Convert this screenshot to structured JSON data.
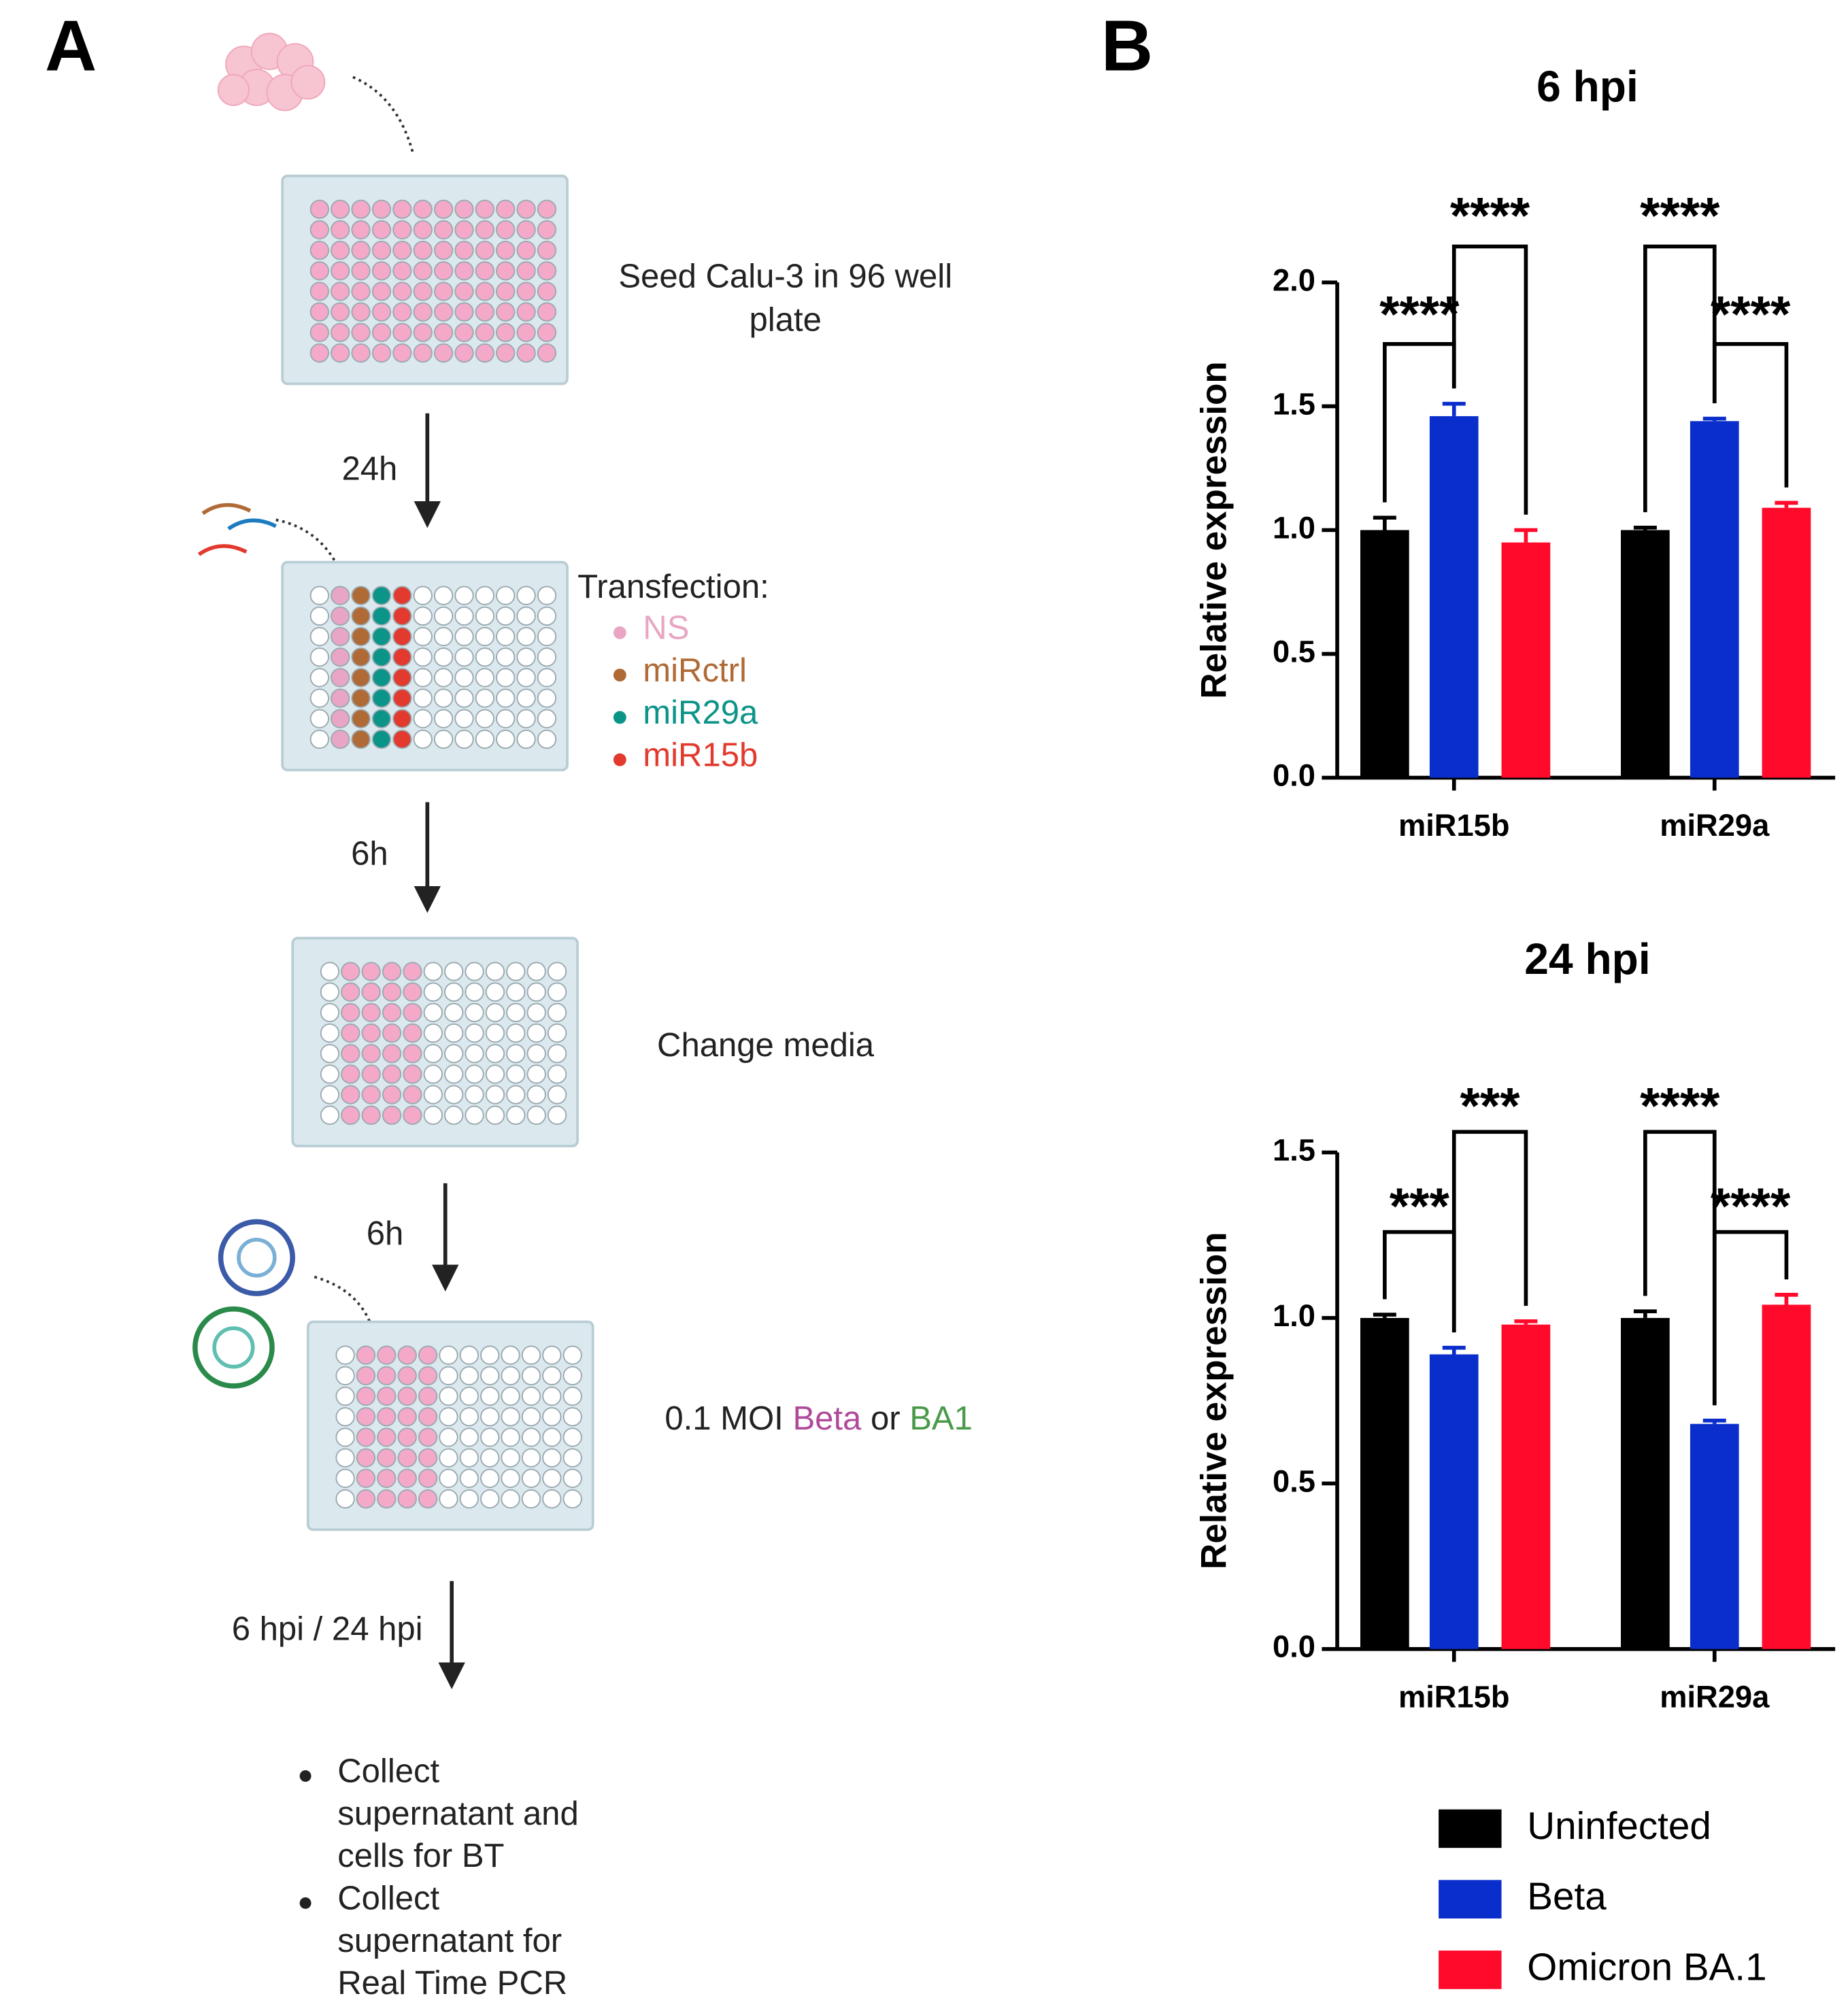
{
  "panel_labels": [
    "A",
    "B"
  ],
  "diagram": {
    "seed": [
      "Seed Calu-3 in 96 well",
      "plate"
    ],
    "step1_time": "24h",
    "transfection": {
      "title": "Transfection:",
      "items": [
        {
          "label": "NS",
          "color": "#e8a6c4"
        },
        {
          "label": "miRctrl",
          "color": "#b06a35"
        },
        {
          "label": "miR29a",
          "color": "#0b9488"
        },
        {
          "label": "miR15b",
          "color": "#e23a2e"
        }
      ]
    },
    "step2_time": "6h",
    "change": "Change media",
    "step3_time": "6h",
    "infection": [
      "0.1 MOI ",
      "Beta",
      " or ",
      "BA1"
    ],
    "step4_time": "6 hpi / 24 hpi",
    "bullets": [
      [
        "Collect",
        "supernatant and",
        "cells for BT"
      ],
      [
        "Collect",
        "supernatant for",
        "Real Time PCR"
      ]
    ]
  },
  "chart_data": [
    {
      "type": "bar",
      "title": "6 hpi",
      "y_label": "Relative expression",
      "categories": [
        "miR15b",
        "miR29a"
      ],
      "series": [
        {
          "name": "Uninfected",
          "color": "#000000",
          "values": [
            1.0,
            1.0
          ],
          "errors": [
            0.05,
            0.01
          ]
        },
        {
          "name": "Beta",
          "color": "#0a2ecc",
          "values": [
            1.46,
            1.44
          ],
          "errors": [
            0.05,
            0.01
          ]
        },
        {
          "name": "Omicron BA.1",
          "color": "#ff0a2a",
          "values": [
            0.95,
            1.09
          ],
          "errors": [
            0.05,
            0.02
          ]
        }
      ],
      "ylim": [
        0,
        2.0
      ],
      "yticks": [
        {
          "value": 0,
          "label": "0.0"
        },
        {
          "value": 0.5,
          "label": "0.5"
        },
        {
          "value": 1,
          "label": "1.0"
        },
        {
          "value": 1.5,
          "label": "1.5"
        },
        {
          "value": 2,
          "label": "2.0"
        }
      ],
      "annotations": [
        "****",
        "****",
        "****",
        "****"
      ]
    },
    {
      "type": "bar",
      "title": "24 hpi",
      "y_label": "Relative expression",
      "categories": [
        "miR15b",
        "miR29a"
      ],
      "series": [
        {
          "name": "Uninfected",
          "color": "#000000",
          "values": [
            1.0,
            1.0
          ],
          "errors": [
            0.01,
            0.02
          ]
        },
        {
          "name": "Beta",
          "color": "#0a2ecc",
          "values": [
            0.89,
            0.68
          ],
          "errors": [
            0.02,
            0.01
          ]
        },
        {
          "name": "Omicron BA.1",
          "color": "#ff0a2a",
          "values": [
            0.98,
            1.04
          ],
          "errors": [
            0.01,
            0.03
          ]
        }
      ],
      "ylim": [
        0,
        1.5
      ],
      "yticks": [
        {
          "value": 0,
          "label": "0.0"
        },
        {
          "value": 0.5,
          "label": "0.5"
        },
        {
          "value": 1,
          "label": "1.0"
        },
        {
          "value": 1.5,
          "label": "1.5"
        }
      ],
      "annotations": [
        "***",
        "***",
        "****",
        "****"
      ]
    }
  ]
}
